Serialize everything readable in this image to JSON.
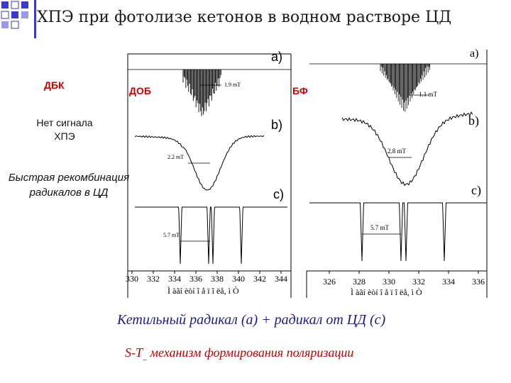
{
  "slide": {
    "title": "ХПЭ при фотолизе кетонов в водном растворе ЦД",
    "labels": {
      "dbk": "ДБК",
      "dob": "ДОБ",
      "bf": "БФ",
      "no_signal_line1": "Нет сигнала",
      "no_signal_line2": "ХПЭ",
      "fast_recomb_line1": "Быстрая рекомбинация",
      "fast_recomb_line2": "радикалов в ЦД"
    },
    "bottom_line1": "Кетильный радикал (a) + радикал от ЦД (c)",
    "bottom_line2_prefix": "S-T",
    "bottom_line2_suffix": "механизм формирования поляризации",
    "accent_red": "#cc0000",
    "accent_blue": "#1b1b8c"
  },
  "spectra": {
    "left": {
      "panel_a": "a)",
      "panel_b": "b)",
      "panel_c": "c)",
      "scale_a": "1.9 mT",
      "scale_b": "2.2 mT",
      "scale_c": "5.7 mT",
      "ticks": [
        "330",
        "332",
        "334",
        "336",
        "338",
        "340",
        "342",
        "344"
      ],
      "axis_label": "Ì àãí èòí î å ï î ëå, ì Ò"
    },
    "right": {
      "panel_a": "a)",
      "panel_b": "b)",
      "panel_c": "c)",
      "scale_a": "1.1 mT",
      "scale_b": "2.8 mT",
      "scale_c": "5.7 mT",
      "ticks": [
        "326",
        "328",
        "330",
        "332",
        "334",
        "336"
      ],
      "axis_label": "Ì àãí èòí î å ï î ëå, ì Ò"
    }
  }
}
